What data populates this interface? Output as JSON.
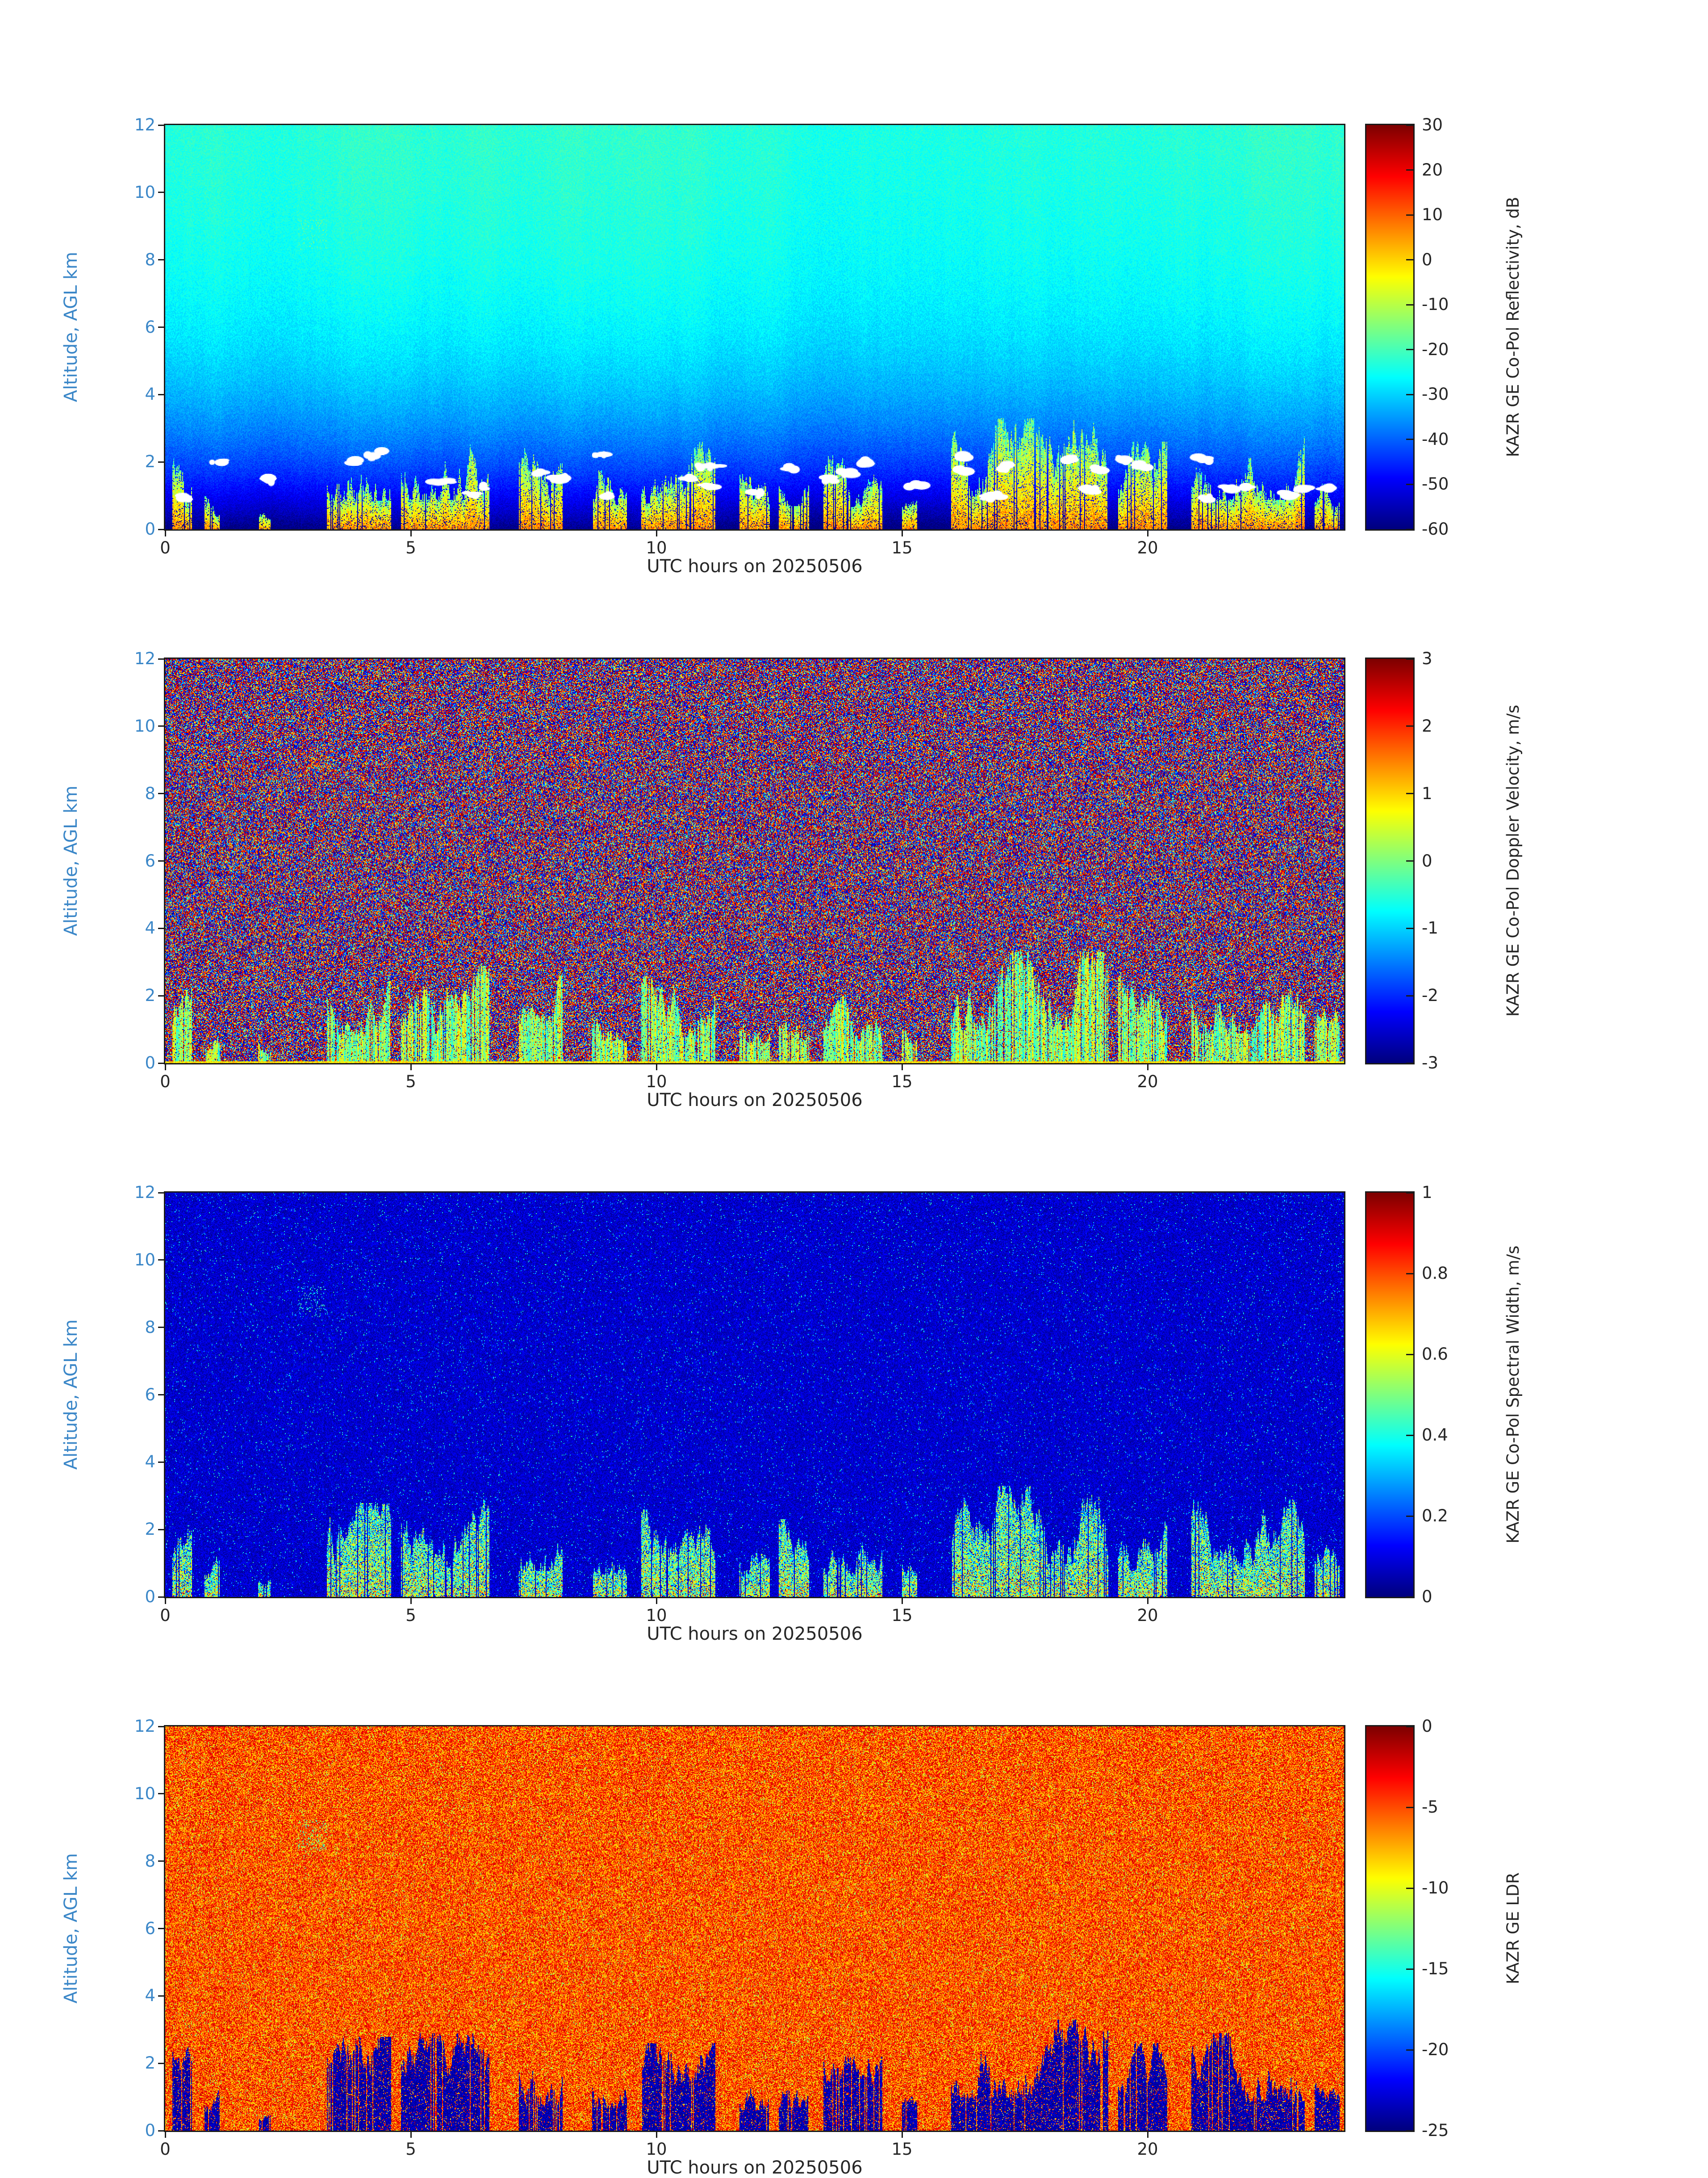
{
  "figure": {
    "instrument": "KAZR GE",
    "date_label": "20250506",
    "background_color": "#ffffff",
    "axis_text_color": "#262626",
    "altitude_text_color": "#3b87c8"
  },
  "chart_data": [
    {
      "type": "heatmap",
      "field": "reflectivity",
      "xlabel": "UTC hours on 20250506",
      "ylabel": "Altitude, AGL km",
      "x_range": [
        0,
        24
      ],
      "y_range": [
        0,
        12
      ],
      "xticks": [
        0,
        5,
        10,
        15,
        20
      ],
      "yticks": [
        0,
        2,
        4,
        6,
        8,
        10,
        12
      ],
      "colorbar": {
        "label": "KAZR GE Co-Pol Reflectivity, dB",
        "range": [
          -60,
          30
        ],
        "ticks": [
          30,
          20,
          10,
          0,
          -10,
          -20,
          -30,
          -40,
          -50,
          -60
        ],
        "colormap": "jet"
      },
      "background_profile": "clear-air return rises from about -60 dB at the surface to about -23 dB near 12 km (dark blue grading to pale cyan-green)",
      "feature_values": "shallow precipitation cells below about 3.5 km reach -10 to +10 dB (yellow/orange/red) with white saturated patches near cell tops"
    },
    {
      "type": "heatmap",
      "field": "doppler_velocity",
      "xlabel": "UTC hours on 20250506",
      "ylabel": "Altitude, AGL km",
      "x_range": [
        0,
        24
      ],
      "y_range": [
        0,
        12
      ],
      "xticks": [
        0,
        5,
        10,
        15,
        20
      ],
      "yticks": [
        0,
        2,
        4,
        6,
        8,
        10,
        12
      ],
      "colorbar": {
        "label": "KAZR GE Co-Pol Doppler Velocity, m/s",
        "range": [
          -3,
          3
        ],
        "ticks": [
          3,
          2,
          1,
          0,
          -1,
          -2,
          -3
        ],
        "colormap": "jet"
      },
      "background_profile": "uncorrelated noise spanning -3 to +3 m/s everywhere above cloud (red/blue salt-and-pepper speckle)",
      "feature_values": "coherent -1 to +1 m/s (cyan/green/yellow) in the low-level cells plus a continuous +0.5 to +1 m/s line at the surface"
    },
    {
      "type": "heatmap",
      "field": "spectral_width",
      "xlabel": "UTC hours on 20250506",
      "ylabel": "Altitude, AGL km",
      "x_range": [
        0,
        24
      ],
      "y_range": [
        0,
        12
      ],
      "xticks": [
        0,
        5,
        10,
        15,
        20
      ],
      "yticks": [
        0,
        2,
        4,
        6,
        8,
        10,
        12
      ],
      "colorbar": {
        "label": "KAZR GE Co-Pol Spectral Width, m/s",
        "range": [
          0,
          1
        ],
        "ticks": [
          1,
          0.8,
          0.6,
          0.4,
          0.2,
          0
        ],
        "colormap": "jet"
      },
      "background_profile": "mostly 0 to 0.15 m/s (dark blue) with sparse lighter specks",
      "feature_values": "0.2 to 0.9 m/s (cyan through red) inside the low-level precipitation cells"
    },
    {
      "type": "heatmap",
      "field": "ldr",
      "xlabel": "UTC hours on 20250506",
      "ylabel": "Altitude, AGL km",
      "x_range": [
        0,
        24
      ],
      "y_range": [
        0,
        12
      ],
      "xticks": [
        0,
        5,
        10,
        15,
        20
      ],
      "yticks": [
        0,
        2,
        4,
        6,
        8,
        10,
        12
      ],
      "colorbar": {
        "label": "KAZR GE LDR",
        "range": [
          -25,
          0
        ],
        "ticks": [
          0,
          -5,
          -10,
          -15,
          -20,
          -25
        ],
        "colormap": "jet"
      },
      "background_profile": "noise field around -8 to -2 (orange/red speckle) with occasional yellow specks",
      "feature_values": "low LDR near -25 to -22 (dark blue) inside the low-level precipitation cells"
    }
  ],
  "precipitation_events": {
    "units": "start_utc_hour, end_utc_hour, approx_top_km",
    "intervals": [
      [
        0.15,
        0.55,
        2.5
      ],
      [
        0.8,
        1.1,
        1.2
      ],
      [
        1.9,
        2.15,
        0.9
      ],
      [
        3.3,
        4.6,
        2.8
      ],
      [
        4.8,
        6.6,
        2.9
      ],
      [
        7.2,
        8.1,
        2.6
      ],
      [
        8.7,
        9.4,
        2.2
      ],
      [
        9.7,
        11.2,
        2.6
      ],
      [
        11.7,
        12.3,
        2.0
      ],
      [
        12.5,
        13.1,
        2.3
      ],
      [
        13.4,
        14.6,
        2.2
      ],
      [
        15.0,
        15.3,
        1.0
      ],
      [
        16.0,
        19.2,
        3.3
      ],
      [
        19.4,
        20.4,
        2.6
      ],
      [
        20.9,
        23.2,
        2.9
      ],
      [
        23.4,
        23.9,
        1.6
      ]
    ],
    "elevated_patch": {
      "t": [
        2.7,
        3.3
      ],
      "alt": [
        8.3,
        9.2
      ]
    }
  }
}
